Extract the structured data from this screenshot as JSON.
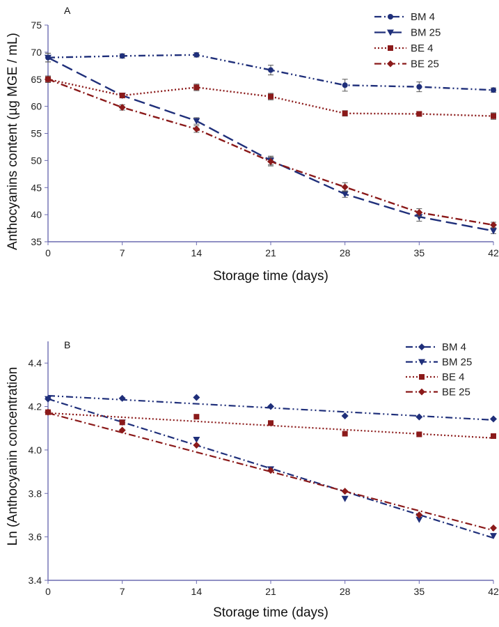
{
  "chart_data": [
    {
      "type": "line",
      "panel_label": "A",
      "xlabel": "Storage time (days)",
      "ylabel": "Anthocyanins content (µg MGE / mL)",
      "x": [
        0,
        7,
        14,
        21,
        28,
        35,
        42
      ],
      "xlim": [
        0,
        42
      ],
      "ylim": [
        35,
        75
      ],
      "yticks": [
        35,
        40,
        45,
        50,
        55,
        60,
        65,
        70,
        75
      ],
      "legend_position": "top-right",
      "series": [
        {
          "name": "BM 4",
          "color": "#1f2f7a",
          "dash": "10 4 2 4 2 4",
          "marker": "circle",
          "values": [
            69.0,
            69.3,
            69.5,
            66.7,
            63.9,
            63.6,
            63.0
          ],
          "errors": [
            0.8,
            0.4,
            0.4,
            0.9,
            1.1,
            0.9,
            0.4
          ]
        },
        {
          "name": "BM 25",
          "color": "#1f2f7a",
          "dash": "16 7",
          "marker": "triangle-down",
          "values": [
            69.0,
            62.0,
            57.3,
            50.0,
            43.8,
            39.6,
            37.0
          ],
          "errors": [
            0.8,
            0.4,
            0.6,
            0.8,
            0.6,
            0.8,
            0.5
          ]
        },
        {
          "name": "BE 4",
          "color": "#8b1a1a",
          "dash": "2 3",
          "marker": "square",
          "values": [
            65.0,
            62.0,
            63.5,
            61.8,
            58.7,
            58.6,
            58.2
          ],
          "errors": [
            0.6,
            0.4,
            0.6,
            0.6,
            0.5,
            0.4,
            0.6
          ]
        },
        {
          "name": "BE 25",
          "color": "#8b1a1a",
          "dash": "10 4 2 4",
          "marker": "diamond",
          "values": [
            65.0,
            59.8,
            55.8,
            49.8,
            45.1,
            40.4,
            38.1
          ],
          "errors": [
            0.6,
            0.5,
            0.6,
            0.8,
            0.8,
            0.7,
            0.5
          ]
        }
      ]
    },
    {
      "type": "scatter",
      "panel_label": "B",
      "xlabel": "Storage time (days)",
      "ylabel": "Ln (Anthocyanin concentration",
      "x": [
        0,
        7,
        14,
        21,
        28,
        35,
        42
      ],
      "xlim": [
        0,
        42
      ],
      "ylim": [
        3.4,
        4.5
      ],
      "yticks": [
        3.4,
        3.6,
        3.8,
        4.0,
        4.2,
        4.4
      ],
      "yticklabels": [
        "3.4",
        "3.6",
        "3.8",
        "4.0",
        "4.2",
        "4.4"
      ],
      "legend_position": "top-right",
      "series": [
        {
          "name": "BM 4",
          "color": "#1f2f7a",
          "dash": "10 4 2 4 2 4",
          "marker": "diamond",
          "values": [
            4.235,
            4.238,
            4.242,
            4.2,
            4.157,
            4.152,
            4.143
          ],
          "trend": [
            4.25,
            4.138
          ]
        },
        {
          "name": "BM 25",
          "color": "#1f2f7a",
          "dash": "10 4 2 4",
          "marker": "triangle-down",
          "values": [
            4.235,
            4.127,
            4.048,
            3.912,
            3.776,
            3.68,
            3.605
          ],
          "trend": [
            4.235,
            3.595
          ]
        },
        {
          "name": "BE 4",
          "color": "#8b1a1a",
          "dash": "2 3",
          "marker": "square",
          "values": [
            4.174,
            4.127,
            4.153,
            4.124,
            4.075,
            4.072,
            4.064
          ],
          "trend": [
            4.17,
            4.055
          ]
        },
        {
          "name": "BE 25",
          "color": "#8b1a1a",
          "dash": "10 4 2 4",
          "marker": "diamond",
          "values": [
            4.174,
            4.091,
            4.022,
            3.906,
            3.81,
            3.701,
            3.641
          ],
          "trend": [
            4.17,
            3.63
          ]
        }
      ]
    }
  ]
}
